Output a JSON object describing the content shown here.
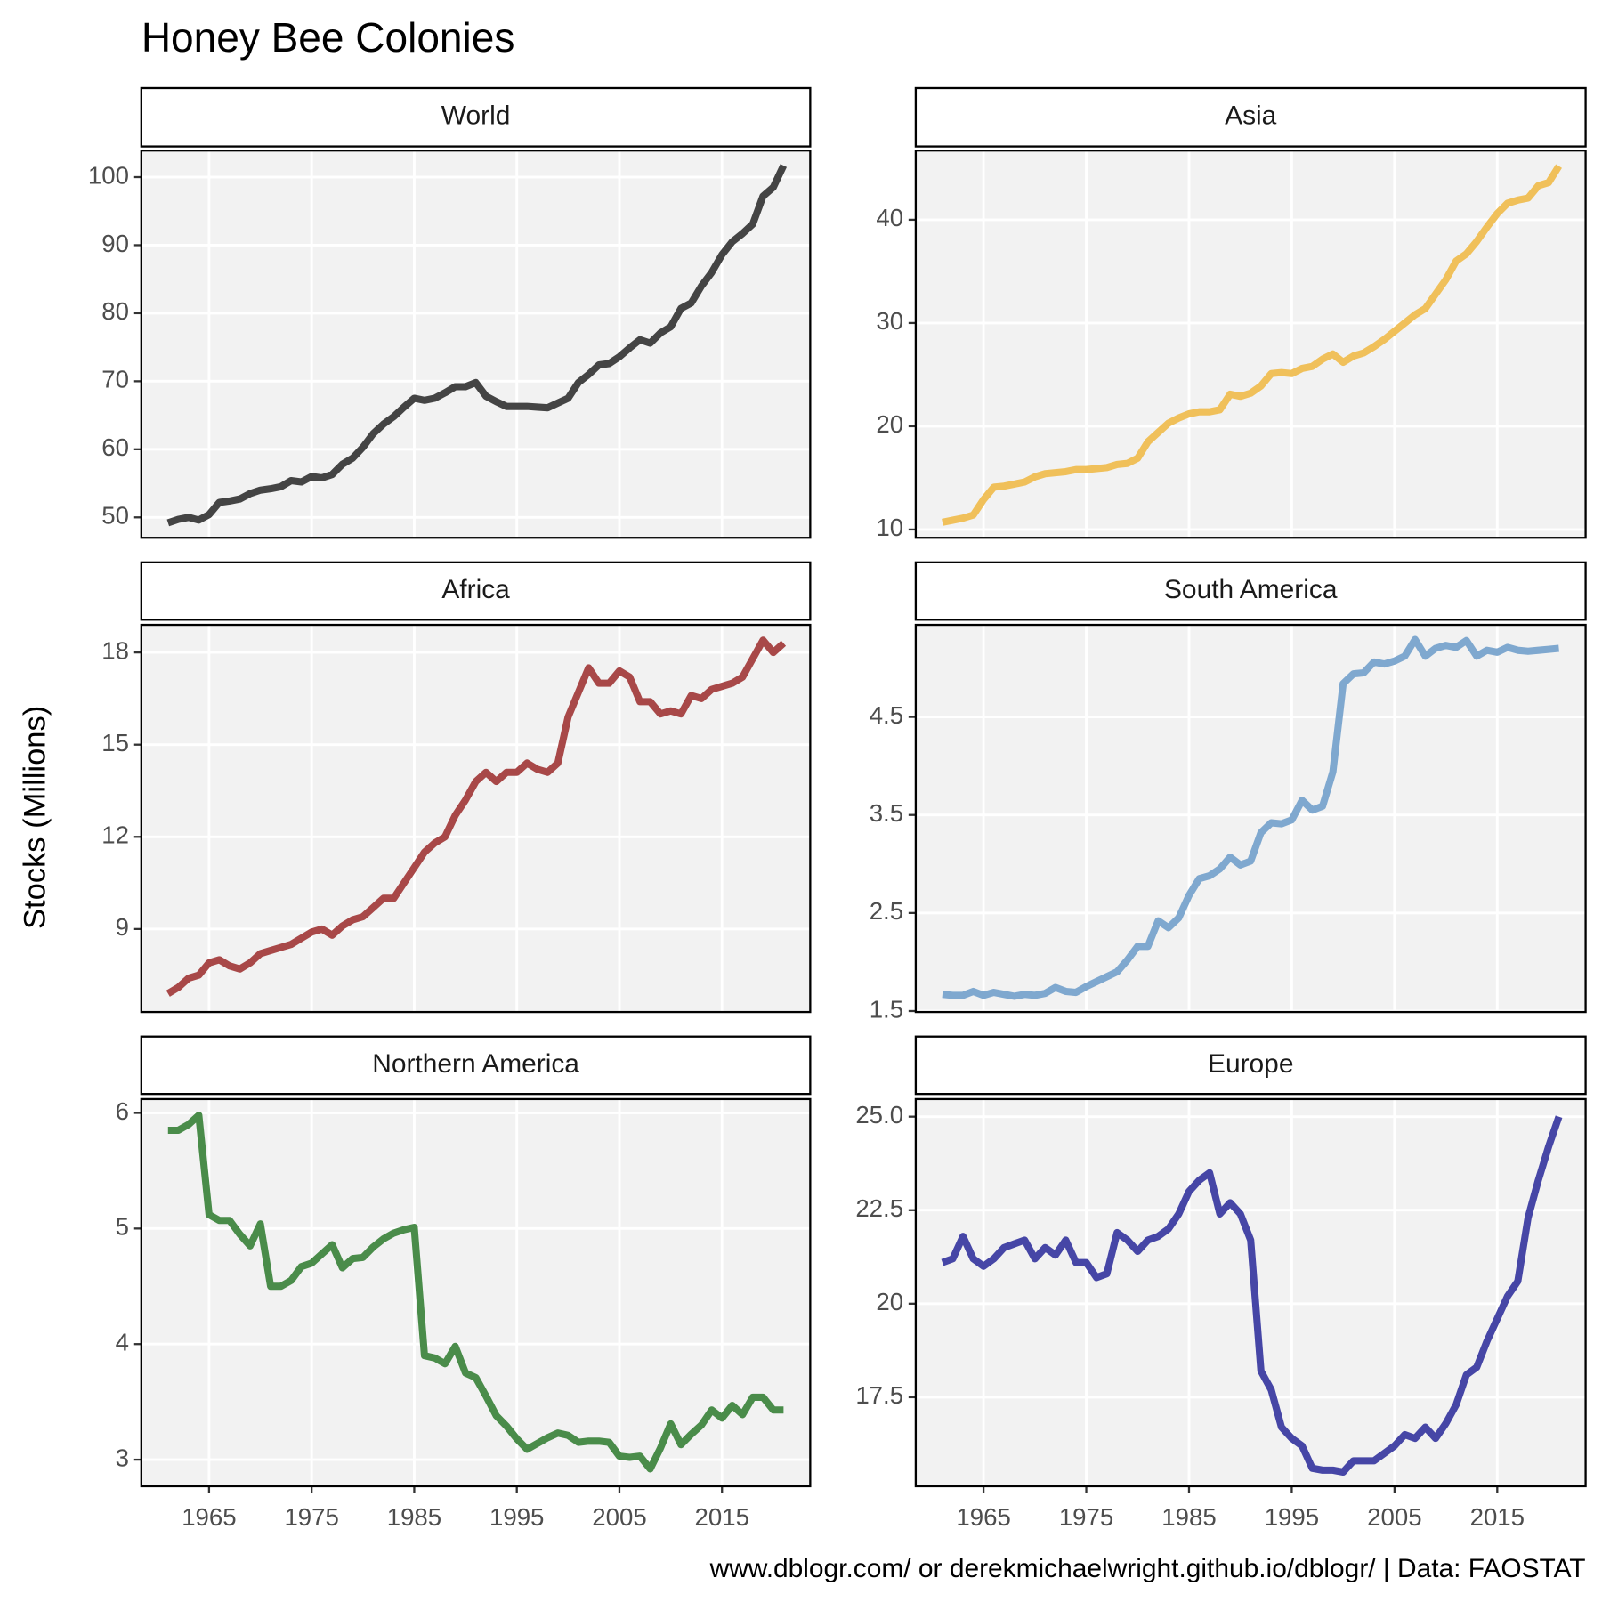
{
  "title": "Honey Bee Colonies",
  "ylabel": "Stocks (Millions)",
  "caption": "www.dblogr.com/ or derekmichaelwright.github.io/dblogr/ | Data: FAOSTAT",
  "chart_data": [
    {
      "type": "line",
      "title": "World",
      "color": "#444444",
      "grid": true,
      "x": [
        1961,
        1962,
        1963,
        1964,
        1965,
        1966,
        1967,
        1968,
        1969,
        1970,
        1971,
        1972,
        1973,
        1974,
        1975,
        1976,
        1977,
        1978,
        1979,
        1980,
        1981,
        1982,
        1983,
        1984,
        1985,
        1986,
        1987,
        1988,
        1989,
        1990,
        1991,
        1992,
        1993,
        1994,
        1995,
        1996,
        1997,
        1998,
        1999,
        2000,
        2001,
        2002,
        2003,
        2004,
        2005,
        2006,
        2007,
        2008,
        2009,
        2010,
        2011,
        2012,
        2013,
        2014,
        2015,
        2016,
        2017,
        2018,
        2019,
        2020,
        2021
      ],
      "values": [
        49.2,
        49.7,
        50.0,
        49.6,
        50.4,
        52.2,
        52.4,
        52.7,
        53.5,
        54.0,
        54.2,
        54.5,
        55.4,
        55.2,
        56.0,
        55.8,
        56.3,
        57.8,
        58.7,
        60.3,
        62.3,
        63.7,
        64.8,
        66.2,
        67.5,
        67.2,
        67.5,
        68.3,
        69.2,
        69.2,
        69.8,
        67.8,
        67.0,
        66.3,
        66.3,
        66.3,
        66.2,
        66.1,
        66.8,
        67.5,
        69.8,
        71.0,
        72.4,
        72.6,
        73.6,
        74.9,
        76.1,
        75.6,
        77.1,
        78.0,
        80.7,
        81.5,
        84.0,
        86.0,
        88.6,
        90.5,
        91.7,
        93.1,
        97.2,
        98.5,
        101.7
      ],
      "xlim": [
        1958.4,
        2023.6
      ],
      "xticks": [
        1965,
        1975,
        1985,
        1995,
        2005,
        2015
      ],
      "ylim": [
        47.0,
        103.9
      ],
      "yticks": [
        50,
        60,
        70,
        80,
        90,
        100
      ]
    },
    {
      "type": "line",
      "title": "Asia",
      "color": "#f0c05a",
      "grid": true,
      "x": [
        1961,
        1962,
        1963,
        1964,
        1965,
        1966,
        1967,
        1968,
        1969,
        1970,
        1971,
        1972,
        1973,
        1974,
        1975,
        1976,
        1977,
        1978,
        1979,
        1980,
        1981,
        1982,
        1983,
        1984,
        1985,
        1986,
        1987,
        1988,
        1989,
        1990,
        1991,
        1992,
        1993,
        1994,
        1995,
        1996,
        1997,
        1998,
        1999,
        2000,
        2001,
        2002,
        2003,
        2004,
        2005,
        2006,
        2007,
        2008,
        2009,
        2010,
        2011,
        2012,
        2013,
        2014,
        2015,
        2016,
        2017,
        2018,
        2019,
        2020,
        2021
      ],
      "values": [
        10.7,
        10.9,
        11.1,
        11.4,
        12.9,
        14.1,
        14.2,
        14.4,
        14.6,
        15.1,
        15.4,
        15.5,
        15.6,
        15.8,
        15.8,
        15.9,
        16.0,
        16.3,
        16.4,
        16.9,
        18.5,
        19.4,
        20.3,
        20.8,
        21.2,
        21.4,
        21.4,
        21.6,
        23.1,
        22.9,
        23.2,
        23.9,
        25.1,
        25.2,
        25.1,
        25.6,
        25.8,
        26.5,
        27.0,
        26.2,
        26.8,
        27.1,
        27.7,
        28.4,
        29.2,
        30.0,
        30.8,
        31.4,
        32.8,
        34.2,
        36.0,
        36.7,
        37.9,
        39.3,
        40.6,
        41.6,
        41.9,
        42.1,
        43.3,
        43.6,
        45.2
      ],
      "xlim": [
        1958.4,
        2023.6
      ],
      "xticks": [
        1965,
        1975,
        1985,
        1995,
        2005,
        2015
      ],
      "ylim": [
        9.2,
        46.7
      ],
      "yticks": [
        10,
        20,
        30,
        40
      ]
    },
    {
      "type": "line",
      "title": "Africa",
      "color": "#a84848",
      "grid": true,
      "x": [
        1961,
        1962,
        1963,
        1964,
        1965,
        1966,
        1967,
        1968,
        1969,
        1970,
        1971,
        1972,
        1973,
        1974,
        1975,
        1976,
        1977,
        1978,
        1979,
        1980,
        1981,
        1982,
        1983,
        1984,
        1985,
        1986,
        1987,
        1988,
        1989,
        1990,
        1991,
        1992,
        1993,
        1994,
        1995,
        1996,
        1997,
        1998,
        1999,
        2000,
        2001,
        2002,
        2003,
        2004,
        2005,
        2006,
        2007,
        2008,
        2009,
        2010,
        2011,
        2012,
        2013,
        2014,
        2015,
        2016,
        2017,
        2018,
        2019,
        2020,
        2021
      ],
      "values": [
        6.9,
        7.1,
        7.4,
        7.5,
        7.9,
        8.0,
        7.8,
        7.7,
        7.9,
        8.2,
        8.3,
        8.4,
        8.5,
        8.7,
        8.9,
        9.0,
        8.8,
        9.1,
        9.3,
        9.4,
        9.7,
        10.0,
        10.0,
        10.5,
        11.0,
        11.5,
        11.8,
        12.0,
        12.7,
        13.2,
        13.8,
        14.1,
        13.8,
        14.1,
        14.1,
        14.4,
        14.2,
        14.1,
        14.4,
        15.9,
        16.7,
        17.5,
        17.0,
        17.0,
        17.4,
        17.2,
        16.4,
        16.4,
        16.0,
        16.1,
        16.0,
        16.6,
        16.5,
        16.8,
        16.9,
        17.0,
        17.2,
        17.8,
        18.4,
        18.0,
        18.3
      ],
      "xlim": [
        1958.4,
        2023.6
      ],
      "xticks": [
        1965,
        1975,
        1985,
        1995,
        2005,
        2015
      ],
      "ylim": [
        6.3,
        18.9
      ],
      "yticks": [
        9,
        12,
        15,
        18
      ]
    },
    {
      "type": "line",
      "title": "South America",
      "color": "#7fa8cf",
      "grid": true,
      "x": [
        1961,
        1962,
        1963,
        1964,
        1965,
        1966,
        1967,
        1968,
        1969,
        1970,
        1971,
        1972,
        1973,
        1974,
        1975,
        1976,
        1977,
        1978,
        1979,
        1980,
        1981,
        1982,
        1983,
        1984,
        1985,
        1986,
        1987,
        1988,
        1989,
        1990,
        1991,
        1992,
        1993,
        1994,
        1995,
        1996,
        1997,
        1998,
        1999,
        2000,
        2001,
        2002,
        2003,
        2004,
        2005,
        2006,
        2007,
        2008,
        2009,
        2010,
        2011,
        2012,
        2013,
        2014,
        2015,
        2016,
        2017,
        2018,
        2019,
        2020,
        2021
      ],
      "values": [
        1.67,
        1.66,
        1.66,
        1.7,
        1.66,
        1.69,
        1.67,
        1.65,
        1.67,
        1.66,
        1.68,
        1.74,
        1.7,
        1.69,
        1.75,
        1.8,
        1.85,
        1.9,
        2.02,
        2.16,
        2.16,
        2.42,
        2.35,
        2.45,
        2.68,
        2.85,
        2.88,
        2.95,
        3.07,
        2.99,
        3.03,
        3.32,
        3.42,
        3.41,
        3.45,
        3.65,
        3.55,
        3.59,
        3.94,
        4.84,
        4.94,
        4.95,
        5.06,
        5.04,
        5.07,
        5.12,
        5.29,
        5.12,
        5.2,
        5.23,
        5.21,
        5.28,
        5.12,
        5.18,
        5.16,
        5.21,
        5.18,
        5.17,
        5.18,
        5.19,
        5.2
      ],
      "xlim": [
        1958.4,
        2023.6
      ],
      "xticks": [
        1965,
        1975,
        1985,
        1995,
        2005,
        2015
      ],
      "ylim": [
        1.49,
        5.44
      ],
      "yticks": [
        1.5,
        2.5,
        3.5,
        4.5
      ]
    },
    {
      "type": "line",
      "title": "Northern America",
      "color": "#4a8c4a",
      "grid": true,
      "x": [
        1961,
        1962,
        1963,
        1964,
        1965,
        1966,
        1967,
        1968,
        1969,
        1970,
        1971,
        1972,
        1973,
        1974,
        1975,
        1976,
        1977,
        1978,
        1979,
        1980,
        1981,
        1982,
        1983,
        1984,
        1985,
        1986,
        1987,
        1988,
        1989,
        1990,
        1991,
        1992,
        1993,
        1994,
        1995,
        1996,
        1997,
        1998,
        1999,
        2000,
        2001,
        2002,
        2003,
        2004,
        2005,
        2006,
        2007,
        2008,
        2009,
        2010,
        2011,
        2012,
        2013,
        2014,
        2015,
        2016,
        2017,
        2018,
        2019,
        2020,
        2021
      ],
      "values": [
        5.85,
        5.85,
        5.9,
        5.98,
        5.12,
        5.07,
        5.07,
        4.95,
        4.85,
        5.04,
        4.5,
        4.5,
        4.55,
        4.67,
        4.7,
        4.78,
        4.86,
        4.66,
        4.74,
        4.75,
        4.84,
        4.91,
        4.96,
        4.99,
        5.01,
        3.9,
        3.88,
        3.83,
        3.98,
        3.75,
        3.71,
        3.55,
        3.38,
        3.29,
        3.18,
        3.09,
        3.14,
        3.19,
        3.23,
        3.21,
        3.15,
        3.16,
        3.16,
        3.15,
        3.03,
        3.02,
        3.03,
        2.92,
        3.1,
        3.31,
        3.13,
        3.22,
        3.3,
        3.43,
        3.36,
        3.47,
        3.39,
        3.54,
        3.54,
        3.43,
        3.43
      ],
      "xlim": [
        1958.4,
        2023.6
      ],
      "xticks": [
        1965,
        1975,
        1985,
        1995,
        2005,
        2015
      ],
      "ylim": [
        2.77,
        6.12
      ],
      "yticks": [
        3,
        4,
        5,
        6
      ]
    },
    {
      "type": "line",
      "title": "Europe",
      "color": "#4646a6",
      "grid": true,
      "x": [
        1961,
        1962,
        1963,
        1964,
        1965,
        1966,
        1967,
        1968,
        1969,
        1970,
        1971,
        1972,
        1973,
        1974,
        1975,
        1976,
        1977,
        1978,
        1979,
        1980,
        1981,
        1982,
        1983,
        1984,
        1985,
        1986,
        1987,
        1988,
        1989,
        1990,
        1991,
        1992,
        1993,
        1994,
        1995,
        1996,
        1997,
        1998,
        1999,
        2000,
        2001,
        2002,
        2003,
        2004,
        2005,
        2006,
        2007,
        2008,
        2009,
        2010,
        2011,
        2012,
        2013,
        2014,
        2015,
        2016,
        2017,
        2018,
        2019,
        2020,
        2021
      ],
      "values": [
        21.1,
        21.2,
        21.8,
        21.2,
        21.0,
        21.2,
        21.5,
        21.6,
        21.7,
        21.2,
        21.5,
        21.3,
        21.7,
        21.1,
        21.1,
        20.7,
        20.8,
        21.9,
        21.7,
        21.4,
        21.7,
        21.8,
        22.0,
        22.4,
        23.0,
        23.3,
        23.5,
        22.4,
        22.7,
        22.4,
        21.7,
        18.2,
        17.7,
        16.7,
        16.4,
        16.2,
        15.6,
        15.55,
        15.55,
        15.5,
        15.8,
        15.8,
        15.8,
        16.0,
        16.2,
        16.5,
        16.4,
        16.7,
        16.4,
        16.8,
        17.3,
        18.1,
        18.3,
        19.0,
        19.6,
        20.2,
        20.6,
        22.3,
        23.3,
        24.2,
        25.0
      ],
      "xlim": [
        1958.4,
        2023.6
      ],
      "xticks": [
        1965,
        1975,
        1985,
        1995,
        2005,
        2015
      ],
      "ylim": [
        15.12,
        25.47
      ],
      "yticks": [
        {
          "value": 17.5,
          "label": "17.5"
        },
        20,
        22.5,
        {
          "value": 25,
          "label": "25.0"
        }
      ]
    }
  ]
}
